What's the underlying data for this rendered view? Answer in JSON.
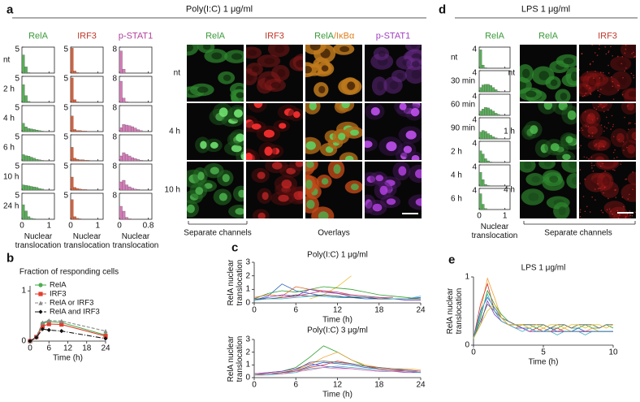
{
  "figure": {
    "a": {
      "label": "a",
      "title": "Poly(I:C) 1 μg/ml",
      "image_columns": [
        "RelA",
        "IRF3",
        [
          "RelA",
          "/IκBα"
        ],
        "p-STAT1"
      ],
      "image_rows": [
        "nt",
        "4 h",
        "10 h"
      ],
      "captions": [
        "Separate channels",
        "Overlays"
      ]
    },
    "b": {
      "label": "b"
    },
    "c": {
      "label": "c"
    },
    "d": {
      "label": "d",
      "title": "LPS 1 μg/ml",
      "image_columns": [
        "RelA",
        "IRF3"
      ],
      "image_rows": [
        "nt",
        "1 h",
        "4 h"
      ],
      "captions": [
        "Separate channels"
      ]
    },
    "e": {
      "label": "e"
    }
  },
  "chart_data": [
    {
      "type": "histogram",
      "title": "RelA",
      "color": "#5aae5a",
      "title_color": "#3a9a3a",
      "xlabel": "Nuclear translocation",
      "bins": [
        0,
        0.1,
        0.2,
        0.3,
        0.4,
        0.5,
        0.6,
        0.7,
        0.8
      ],
      "xlim": [
        0,
        1.2
      ],
      "xticks": [
        0,
        1
      ],
      "ylim": [
        0,
        5
      ],
      "yticks": [
        5
      ],
      "series": [
        {
          "name": "nt",
          "values": [
            3.5,
            1.2,
            0.1,
            0,
            0,
            0,
            0,
            0
          ]
        },
        {
          "name": "2 h",
          "values": [
            3.4,
            1.3,
            0.2,
            0,
            0,
            0,
            0,
            0
          ]
        },
        {
          "name": "4 h",
          "values": [
            1.6,
            0.9,
            0.6,
            0.5,
            0.4,
            0.3,
            0.2,
            0.1
          ]
        },
        {
          "name": "6 h",
          "values": [
            1.2,
            1.0,
            0.9,
            0.7,
            0.5,
            0.3,
            0.2,
            0.1
          ]
        },
        {
          "name": "10 h",
          "values": [
            1.0,
            0.9,
            0.8,
            0.7,
            0.6,
            0.5,
            0.3,
            0.2
          ]
        },
        {
          "name": "24 h",
          "values": [
            2.8,
            1.6,
            0.5,
            0.2,
            0.1,
            0,
            0,
            0
          ]
        }
      ]
    },
    {
      "type": "histogram",
      "title": "IRF3",
      "color": "#d9603b",
      "title_color": "#c0392b",
      "xlabel": "Nuclear translocation",
      "bins": [
        0,
        0.1,
        0.2,
        0.3,
        0.4,
        0.5,
        0.6,
        0.7,
        0.8
      ],
      "xlim": [
        0,
        1.2
      ],
      "xticks": [
        0,
        1
      ],
      "ylim": [
        0,
        5
      ],
      "yticks": [
        5
      ],
      "series": [
        {
          "values": [
            4.8,
            0.4,
            0.1,
            0,
            0,
            0,
            0,
            0
          ]
        },
        {
          "values": [
            4.7,
            0.5,
            0.1,
            0,
            0,
            0,
            0,
            0
          ]
        },
        {
          "values": [
            3.0,
            0.4,
            0.2,
            0.2,
            0.1,
            0.1,
            0,
            0
          ]
        },
        {
          "values": [
            2.6,
            0.5,
            0.3,
            0.2,
            0.2,
            0.1,
            0.1,
            0
          ]
        },
        {
          "values": [
            2.5,
            0.5,
            0.3,
            0.2,
            0.1,
            0.1,
            0,
            0
          ]
        },
        {
          "values": [
            3.8,
            0.5,
            0.2,
            0.1,
            0,
            0,
            0,
            0
          ]
        }
      ]
    },
    {
      "type": "histogram",
      "title": "p-STAT1",
      "color": "#d47cb8",
      "title_color": "#b0409a",
      "xlabel": "Nuclear translocation",
      "bins": [
        0,
        0.08,
        0.16,
        0.24,
        0.32,
        0.4,
        0.48,
        0.56,
        0.64
      ],
      "xlim": [
        0,
        0.9
      ],
      "xticks": [
        0,
        0.8
      ],
      "ylim": [
        0,
        8
      ],
      "yticks": [
        8
      ],
      "series": [
        {
          "values": [
            6.8,
            1.2,
            0.1,
            0,
            0,
            0,
            0,
            0
          ]
        },
        {
          "values": [
            6.5,
            1.3,
            0.2,
            0,
            0,
            0,
            0,
            0
          ]
        },
        {
          "values": [
            1.2,
            2.2,
            2.0,
            1.8,
            1.5,
            1.1,
            0.6,
            0.3
          ]
        },
        {
          "values": [
            1.5,
            2.5,
            2.0,
            1.5,
            1.0,
            0.7,
            0.4,
            0.2
          ]
        },
        {
          "values": [
            2.5,
            3.0,
            1.6,
            1.0,
            0.6,
            0.3,
            0.2,
            0.1
          ]
        },
        {
          "values": [
            4.0,
            2.5,
            0.6,
            0.2,
            0.1,
            0,
            0,
            0
          ]
        }
      ]
    },
    {
      "type": "line",
      "title": "Fraction of responding cells",
      "xlabel": "Time (h)",
      "legend": "upper left",
      "x": [
        0,
        2,
        4,
        6,
        10,
        24
      ],
      "xlim": [
        0,
        24
      ],
      "xticks": [
        0,
        6,
        12,
        18,
        24
      ],
      "ylim": [
        0,
        1.1
      ],
      "yticks": [
        0,
        1
      ],
      "series": [
        {
          "name": "RelA",
          "color": "#4caf50",
          "marker": "circle",
          "values": [
            0,
            0.08,
            0.35,
            0.39,
            0.37,
            0.12
          ]
        },
        {
          "name": "IRF3",
          "color": "#e04030",
          "marker": "square",
          "values": [
            0,
            0.08,
            0.3,
            0.34,
            0.33,
            0.1
          ]
        },
        {
          "name": "RelA or IRF3",
          "color": "#888888",
          "marker": "triangle",
          "dash": "4,2",
          "values": [
            0,
            0.09,
            0.37,
            0.41,
            0.4,
            0.2
          ]
        },
        {
          "name": "RelA and IRF3",
          "color": "#111111",
          "marker": "diamond",
          "dash": "6,2,1,2",
          "values": [
            0,
            0.07,
            0.24,
            0.22,
            0.2,
            0.05
          ]
        }
      ]
    },
    {
      "type": "line",
      "title": "Poly(I:C) 1 μg/ml",
      "xlabel": "Time (h)",
      "ylabel": "RelA nuclear translocation",
      "x": [
        0,
        2,
        4,
        6,
        8,
        10,
        12,
        14,
        16,
        18,
        20,
        22,
        24
      ],
      "xlim": [
        0,
        24
      ],
      "xticks": [
        0,
        6,
        12,
        18,
        24
      ],
      "ylim": [
        0,
        3
      ],
      "yticks": [
        0,
        1,
        2,
        3
      ],
      "series": [
        {
          "color": "#2060c0",
          "values": [
            0.2,
            0.5,
            1.4,
            0.9,
            0.7,
            0.5,
            0.4,
            0.4,
            0.3,
            0.3,
            0.3,
            0.3,
            0.4
          ]
        },
        {
          "color": "#f0c040",
          "values": [
            null,
            null,
            null,
            null,
            0.3,
            0.6,
            1.2,
            2.0,
            null,
            null,
            null,
            null,
            null
          ]
        },
        {
          "color": "#30a030",
          "values": [
            0.3,
            0.7,
            0.9,
            0.8,
            1.0,
            1.2,
            1.1,
            1.0,
            0.8,
            0.6,
            0.5,
            0.4,
            0.3
          ]
        },
        {
          "color": "#e06020",
          "values": [
            0.4,
            0.6,
            0.5,
            1.2,
            1.0,
            0.9,
            0.7,
            0.6,
            0.5,
            0.4,
            null,
            null,
            null
          ]
        },
        {
          "color": "#8040c0",
          "values": [
            0.2,
            0.4,
            0.6,
            0.5,
            1.0,
            0.8,
            0.7,
            0.5,
            0.4,
            0.3,
            0.3,
            0.2,
            0.2
          ]
        },
        {
          "color": "#404040",
          "values": [
            0.3,
            0.3,
            0.4,
            0.6,
            0.5,
            0.6,
            0.5,
            0.4,
            0.4,
            0.3,
            0.3,
            0.3,
            0.3
          ]
        },
        {
          "color": "#40b0c0",
          "values": [
            0.2,
            0.3,
            0.3,
            0.4,
            0.5,
            0.5,
            0.4,
            0.5,
            0.4,
            0.4,
            0.3,
            0.3,
            0.5
          ]
        },
        {
          "color": "#c04080",
          "values": [
            null,
            null,
            0.4,
            0.5,
            0.7,
            0.9,
            0.8,
            0.6,
            0.5,
            0.4,
            0.4,
            null,
            null
          ]
        }
      ]
    },
    {
      "type": "line",
      "title": "Poly(I:C) 3 μg/ml",
      "xlabel": "Time (h)",
      "ylabel": "RelA nuclear translocation",
      "x": [
        0,
        2,
        4,
        6,
        8,
        10,
        12,
        14,
        16,
        18,
        20,
        22,
        24
      ],
      "xlim": [
        0,
        24
      ],
      "xticks": [
        0,
        6,
        12,
        18,
        24
      ],
      "ylim": [
        0,
        3
      ],
      "yticks": [
        0,
        1,
        2,
        3
      ],
      "series": [
        {
          "color": "#30a030",
          "values": [
            0.3,
            0.4,
            0.5,
            0.8,
            1.6,
            2.5,
            2.0,
            1.4,
            0.9,
            0.7,
            0.6,
            0.5,
            0.4
          ]
        },
        {
          "color": "#f0a030",
          "values": [
            0.2,
            0.3,
            0.4,
            0.6,
            1.0,
            1.6,
            2.0,
            1.4,
            1.0,
            0.8,
            0.7,
            0.7,
            0.6
          ]
        },
        {
          "color": "#2060c0",
          "values": [
            0.3,
            0.3,
            0.4,
            0.5,
            0.9,
            1.2,
            1.1,
            1.0,
            0.8,
            0.7,
            0.6,
            0.6,
            0.5
          ]
        },
        {
          "color": "#d03030",
          "values": [
            0.2,
            0.3,
            0.4,
            0.5,
            0.8,
            1.0,
            1.3,
            1.1,
            0.9,
            0.7,
            0.6,
            0.5,
            0.4
          ]
        },
        {
          "color": "#8040c0",
          "values": [
            0.3,
            0.4,
            0.5,
            0.7,
            1.1,
            0.9,
            0.8,
            0.7,
            0.6,
            0.5,
            0.5,
            0.4,
            0.4
          ]
        },
        {
          "color": "#606060",
          "values": [
            0.3,
            0.3,
            0.4,
            0.6,
            1.2,
            1.3,
            1.2,
            1.1,
            0.9,
            0.8,
            0.7,
            0.6,
            0.5
          ]
        },
        {
          "color": "#40b0c0",
          "values": [
            0.2,
            0.2,
            0.3,
            0.4,
            0.7,
            0.8,
            0.9,
            0.8,
            0.7,
            0.6,
            0.5,
            0.5,
            0.4
          ]
        },
        {
          "color": "#e070b0",
          "values": [
            0.3,
            0.3,
            0.3,
            0.5,
            0.6,
            0.8,
            0.7,
            0.7,
            0.6,
            0.5,
            0.5,
            0.5,
            0.5
          ]
        }
      ]
    },
    {
      "type": "histogram",
      "title": "RelA",
      "color": "#5aae5a",
      "title_color": "#3a9a3a",
      "xlabel": "Nuclear translocation",
      "bins": [
        0,
        0.1,
        0.2,
        0.3,
        0.4,
        0.5,
        0.6,
        0.7,
        0.8
      ],
      "xlim": [
        0,
        1.2
      ],
      "xticks": [
        0,
        1
      ],
      "ylim": [
        0,
        4
      ],
      "yticks": [
        4
      ],
      "series": [
        {
          "name": "nt",
          "values": [
            3.5,
            0.6,
            0.1,
            0,
            0,
            0,
            0,
            0
          ]
        },
        {
          "name": "30 min",
          "values": [
            0.8,
            1.3,
            1.4,
            1.4,
            1.2,
            0.8,
            0.4,
            0.1
          ]
        },
        {
          "name": "60 min",
          "values": [
            0.8,
            1.2,
            1.5,
            1.4,
            1.1,
            0.8,
            0.4,
            0.2
          ]
        },
        {
          "name": "90 min",
          "values": [
            1.3,
            1.6,
            1.4,
            1.0,
            0.7,
            0.4,
            0.2,
            0
          ]
        },
        {
          "name": "2 h",
          "values": [
            2.2,
            1.6,
            0.7,
            0.3,
            0.1,
            0,
            0,
            0
          ]
        },
        {
          "name": "4 h",
          "values": [
            2.6,
            1.2,
            0.3,
            0.1,
            0,
            0,
            0,
            0
          ]
        },
        {
          "name": "6 h",
          "values": [
            3.0,
            1.0,
            0.2,
            0,
            0,
            0,
            0,
            0
          ]
        }
      ]
    },
    {
      "type": "line",
      "title": "LPS 1 μg/ml",
      "xlabel": "Time (h)",
      "ylabel": "RelA nuclear translocation",
      "x": [
        0,
        0.5,
        1,
        1.5,
        2,
        2.5,
        3,
        3.5,
        4,
        4.5,
        5,
        5.5,
        6,
        6.5,
        7,
        7.5,
        8,
        8.5,
        9,
        9.5,
        10
      ],
      "xlim": [
        0,
        10
      ],
      "xticks": [
        0,
        5,
        10
      ],
      "ylim": [
        0,
        1
      ],
      "yticks": [
        0,
        1
      ],
      "series": [
        {
          "color": "#f0a030",
          "values": [
            0.1,
            0.5,
            0.98,
            0.7,
            0.4,
            0.3,
            0.25,
            0.3,
            0.25,
            0.2,
            0.25,
            0.2,
            0.2,
            0.25,
            0.2,
            0.2,
            0.2,
            0.25,
            0.2,
            0.2,
            0.2
          ]
        },
        {
          "color": "#d03030",
          "values": [
            0.1,
            0.6,
            0.9,
            0.5,
            0.35,
            0.3,
            0.3,
            0.25,
            0.2,
            0.25,
            0.2,
            0.2,
            0.25,
            0.2,
            0.2,
            0.2,
            0.2,
            0.2,
            0.2,
            0.2,
            0.2
          ]
        },
        {
          "color": "#30a030",
          "values": [
            0.1,
            0.4,
            0.8,
            0.6,
            0.45,
            0.35,
            0.3,
            0.3,
            0.3,
            0.25,
            0.3,
            0.25,
            0.25,
            0.3,
            0.25,
            0.25,
            0.3,
            0.25,
            0.25,
            0.3,
            0.25
          ]
        },
        {
          "color": "#2060c0",
          "values": [
            0.1,
            0.5,
            0.7,
            0.55,
            0.4,
            0.3,
            0.3,
            0.25,
            0.25,
            0.2,
            0.2,
            0.25,
            0.2,
            0.2,
            0.2,
            0.25,
            0.2,
            0.2,
            0.2,
            0.2,
            0.2
          ]
        },
        {
          "color": "#8040c0",
          "values": [
            0.1,
            0.3,
            0.65,
            0.45,
            0.35,
            0.3,
            0.25,
            0.25,
            0.2,
            0.2,
            0.2,
            0.2,
            0.2,
            0.2,
            0.2,
            0.2,
            0.2,
            0.2,
            0.2,
            0.2,
            0.2
          ]
        },
        {
          "color": "#606060",
          "values": [
            0.1,
            0.35,
            0.6,
            0.5,
            0.4,
            0.35,
            0.3,
            0.3,
            0.3,
            0.3,
            0.3,
            0.25,
            0.3,
            0.3,
            0.25,
            0.3,
            0.3,
            0.3,
            0.25,
            0.3,
            0.3
          ]
        },
        {
          "color": "#40b0c0",
          "values": [
            0.1,
            0.45,
            0.75,
            0.5,
            0.35,
            0.3,
            0.25,
            0.2,
            0.25,
            0.2,
            0.2,
            0.2,
            0.15,
            0.2,
            0.2,
            0.2,
            0.15,
            0.2,
            0.2,
            0.2,
            0.2
          ]
        },
        {
          "color": "#e0c030",
          "values": [
            0.1,
            0.3,
            0.5,
            0.6,
            0.4,
            0.3,
            0.3,
            0.3,
            0.25,
            0.3,
            0.25,
            0.3,
            0.3,
            0.25,
            0.3,
            0.3,
            0.25,
            0.3,
            0.3,
            0.25,
            0.3
          ]
        }
      ]
    }
  ]
}
